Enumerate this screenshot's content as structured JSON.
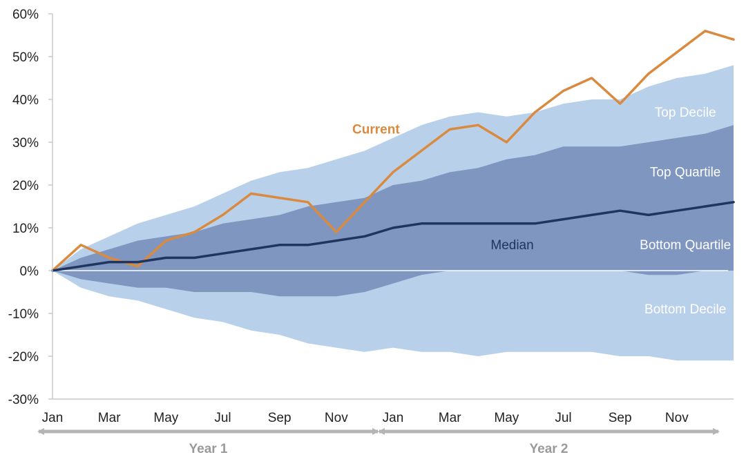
{
  "chart_data": {
    "type": "area",
    "ylim": [
      -30,
      60
    ],
    "y_ticks": [
      "60%",
      "50%",
      "40%",
      "30%",
      "20%",
      "10%",
      "0%",
      "-10%",
      "-20%",
      "-30%"
    ],
    "y_tick_values": [
      60,
      50,
      40,
      30,
      20,
      10,
      0,
      -10,
      -20,
      -30
    ],
    "x_ticks": [
      "Jan",
      "Mar",
      "May",
      "Jul",
      "Sep",
      "Nov",
      "Jan",
      "Mar",
      "May",
      "Jul",
      "Sep",
      "Nov"
    ],
    "x_tick_months": [
      0,
      2,
      4,
      6,
      8,
      10,
      12,
      14,
      16,
      18,
      20,
      22
    ],
    "xlim_months": [
      0,
      24
    ],
    "periods": [
      {
        "label": "Year 1",
        "start_month": 0,
        "end_month": 12
      },
      {
        "label": "Year 2",
        "start_month": 12,
        "end_month": 24
      }
    ],
    "x_months": [
      0,
      1,
      2,
      3,
      4,
      5,
      6,
      7,
      8,
      9,
      10,
      11,
      12,
      13,
      14,
      15,
      16,
      17,
      18,
      19,
      20,
      21,
      22,
      23,
      24
    ],
    "bands": [
      {
        "name": "Top Decile",
        "color": "#b9d0ea",
        "lower": [
          0,
          -4,
          -6,
          -7,
          -9,
          -11,
          -12,
          -14,
          -15,
          -17,
          -18,
          -19,
          -18,
          -19,
          -19,
          -20,
          -19,
          -19,
          -19,
          -19,
          -20,
          -20,
          -21,
          -21,
          -21
        ],
        "upper": [
          0,
          5,
          8,
          11,
          13,
          15,
          18,
          21,
          23,
          24,
          26,
          28,
          31,
          34,
          36,
          37,
          36,
          37,
          39,
          40,
          40,
          43,
          45,
          46,
          48
        ]
      },
      {
        "name": "Top Quartile",
        "color": "#7f96c0",
        "lower": [
          0,
          -2,
          -3,
          -4,
          -4,
          -5,
          -5,
          -5,
          -6,
          -6,
          -6,
          -5,
          -3,
          -1,
          0,
          0,
          0,
          0,
          0,
          0,
          0,
          -1,
          -1,
          0,
          0
        ],
        "upper": [
          0,
          3,
          5,
          7,
          8,
          9,
          11,
          12,
          13,
          15,
          16,
          17,
          20,
          21,
          23,
          24,
          26,
          27,
          29,
          29,
          29,
          30,
          31,
          32,
          34
        ]
      }
    ],
    "series": [
      {
        "name": "Current",
        "color": "#d98a3f",
        "values": [
          0,
          6,
          3,
          1,
          7,
          9,
          13,
          18,
          17,
          16,
          9,
          16,
          23,
          28,
          33,
          34,
          30,
          37,
          42,
          45,
          39,
          46,
          51,
          56,
          54
        ]
      },
      {
        "name": "Median",
        "color": "#1f3560",
        "values": [
          0,
          1,
          2,
          2,
          3,
          3,
          4,
          5,
          6,
          6,
          7,
          8,
          10,
          11,
          11,
          11,
          11,
          11,
          12,
          13,
          14,
          13,
          14,
          15,
          16
        ]
      }
    ],
    "band_labels": [
      {
        "name": "Top Decile",
        "month": 22.3,
        "y": 36
      },
      {
        "name": "Top Quartile",
        "month": 22.3,
        "y": 22
      },
      {
        "name": "Bottom Quartile",
        "month": 22.3,
        "y": 5
      },
      {
        "name": "Bottom Decile",
        "month": 22.3,
        "y": -10
      }
    ],
    "series_labels": [
      {
        "name": "Current",
        "month": 11.4,
        "y": 32
      },
      {
        "name": "Median",
        "month": 16.2,
        "y": 5
      }
    ]
  }
}
